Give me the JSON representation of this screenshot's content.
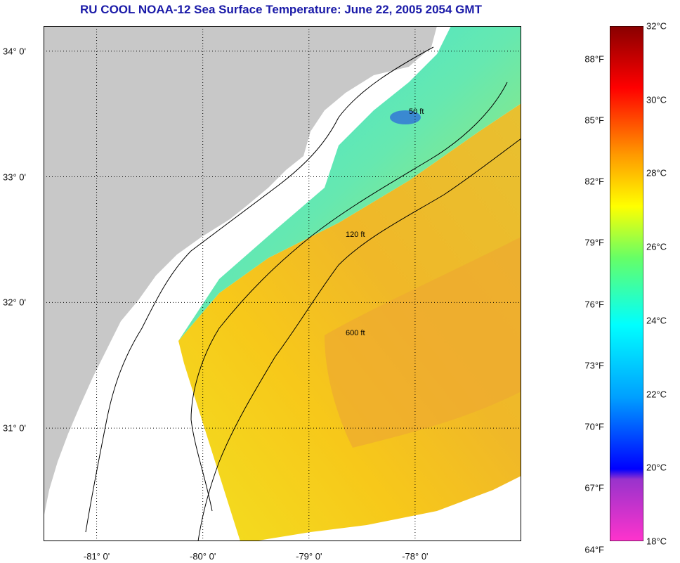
{
  "title": "RU COOL  NOAA-12  Sea Surface Temperature:  June 22, 2005 2054 GMT",
  "map": {
    "lon_range": [
      -81.5,
      -77.0
    ],
    "lat_range": [
      30.1,
      34.2
    ],
    "lon_ticks": [
      {
        "value": -81,
        "label": "-81° 0'"
      },
      {
        "value": -80,
        "label": "-80° 0'"
      },
      {
        "value": -79,
        "label": "-79° 0'"
      },
      {
        "value": -78,
        "label": "-78° 0'"
      }
    ],
    "lat_ticks": [
      {
        "value": 34,
        "label": "34° 0'"
      },
      {
        "value": 33,
        "label": "33° 0'"
      },
      {
        "value": 32,
        "label": "32° 0'"
      },
      {
        "value": 31,
        "label": "31° 0'"
      }
    ],
    "contours": [
      {
        "depth": "50 ft",
        "label": "50 ft"
      },
      {
        "depth": "120 ft",
        "label": "120 ft"
      },
      {
        "depth": "600 ft",
        "label": "600 ft"
      }
    ],
    "colors": {
      "land": "#c8c8c8",
      "nodata": "#ffffff",
      "ocean_warm": "#ffcc00",
      "ocean_cool": "#40e8d8"
    }
  },
  "colorbar": {
    "fahrenheit": [
      "64°F",
      "67°F",
      "70°F",
      "73°F",
      "76°F",
      "79°F",
      "82°F",
      "85°F",
      "88°F"
    ],
    "celsius": [
      "18°C",
      "20°C",
      "22°C",
      "24°C",
      "26°C",
      "28°C",
      "30°C",
      "32°C"
    ],
    "fahrenheit_values": [
      64,
      67,
      70,
      73,
      76,
      79,
      82,
      85,
      88
    ],
    "celsius_values": [
      18,
      20,
      22,
      24,
      26,
      28,
      30,
      32
    ],
    "range_c": [
      18,
      32
    ]
  }
}
